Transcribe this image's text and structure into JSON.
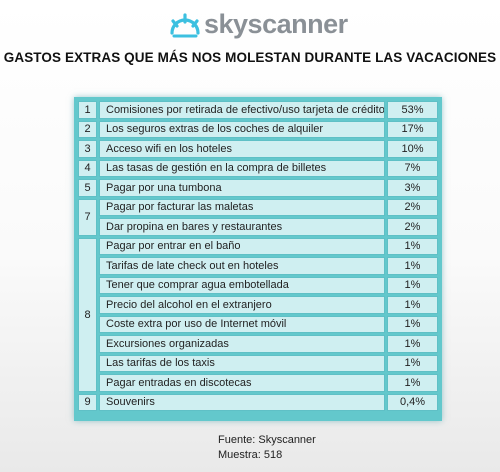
{
  "brand": {
    "logo_text": "skyscanner",
    "logo_color": "#8a9096",
    "icon_color": "#3cc0e0"
  },
  "headline": "GASTOS EXTRAS QUE MÁS NOS MOLESTAN DURANTE LAS VACACIONES",
  "colors": {
    "table_frame": "#63c8cc",
    "cell_fill": "#cfeff1",
    "cell_border": "#5fc0c6"
  },
  "chart_data": {
    "type": "table",
    "title": "GASTOS EXTRAS QUE MÁS NOS MOLESTAN DURANTE LAS VACACIONES",
    "groups": [
      {
        "rank": "1",
        "items": [
          {
            "label": "Comisiones por retirada de efectivo/uso tarjeta de crédito",
            "value": "53%"
          }
        ]
      },
      {
        "rank": "2",
        "items": [
          {
            "label": "Los seguros extras de los coches de alquiler",
            "value": "17%"
          }
        ]
      },
      {
        "rank": "3",
        "items": [
          {
            "label": "Acceso wifi en los hoteles",
            "value": "10%"
          }
        ]
      },
      {
        "rank": "4",
        "items": [
          {
            "label": "Las tasas de gestión en la compra de billetes",
            "value": "7%"
          }
        ]
      },
      {
        "rank": "5",
        "items": [
          {
            "label": "Pagar por una tumbona",
            "value": "3%"
          }
        ]
      },
      {
        "rank": "7",
        "items": [
          {
            "label": "Pagar por facturar las maletas",
            "value": "2%"
          },
          {
            "label": "Dar propina en bares y restaurantes",
            "value": "2%"
          }
        ]
      },
      {
        "rank": "8",
        "items": [
          {
            "label": "Pagar por entrar en el baño",
            "value": "1%"
          },
          {
            "label": "Tarifas de late check out en hoteles",
            "value": "1%"
          },
          {
            "label": "Tener que comprar agua embotellada",
            "value": "1%"
          },
          {
            "label": "Precio del alcohol en el extranjero",
            "value": "1%"
          },
          {
            "label": "Coste extra por uso de Internet móvil",
            "value": "1%"
          },
          {
            "label": "Excursiones organizadas",
            "value": "1%"
          },
          {
            "label": "Las tarifas de los taxis",
            "value": "1%"
          },
          {
            "label": "Pagar entradas en discotecas",
            "value": "1%"
          }
        ]
      },
      {
        "rank": "9",
        "items": [
          {
            "label": "Souvenirs",
            "value": "0,4%"
          }
        ]
      }
    ]
  },
  "footer": {
    "source": "Fuente: Skyscanner",
    "sample": "Muestra: 518"
  }
}
